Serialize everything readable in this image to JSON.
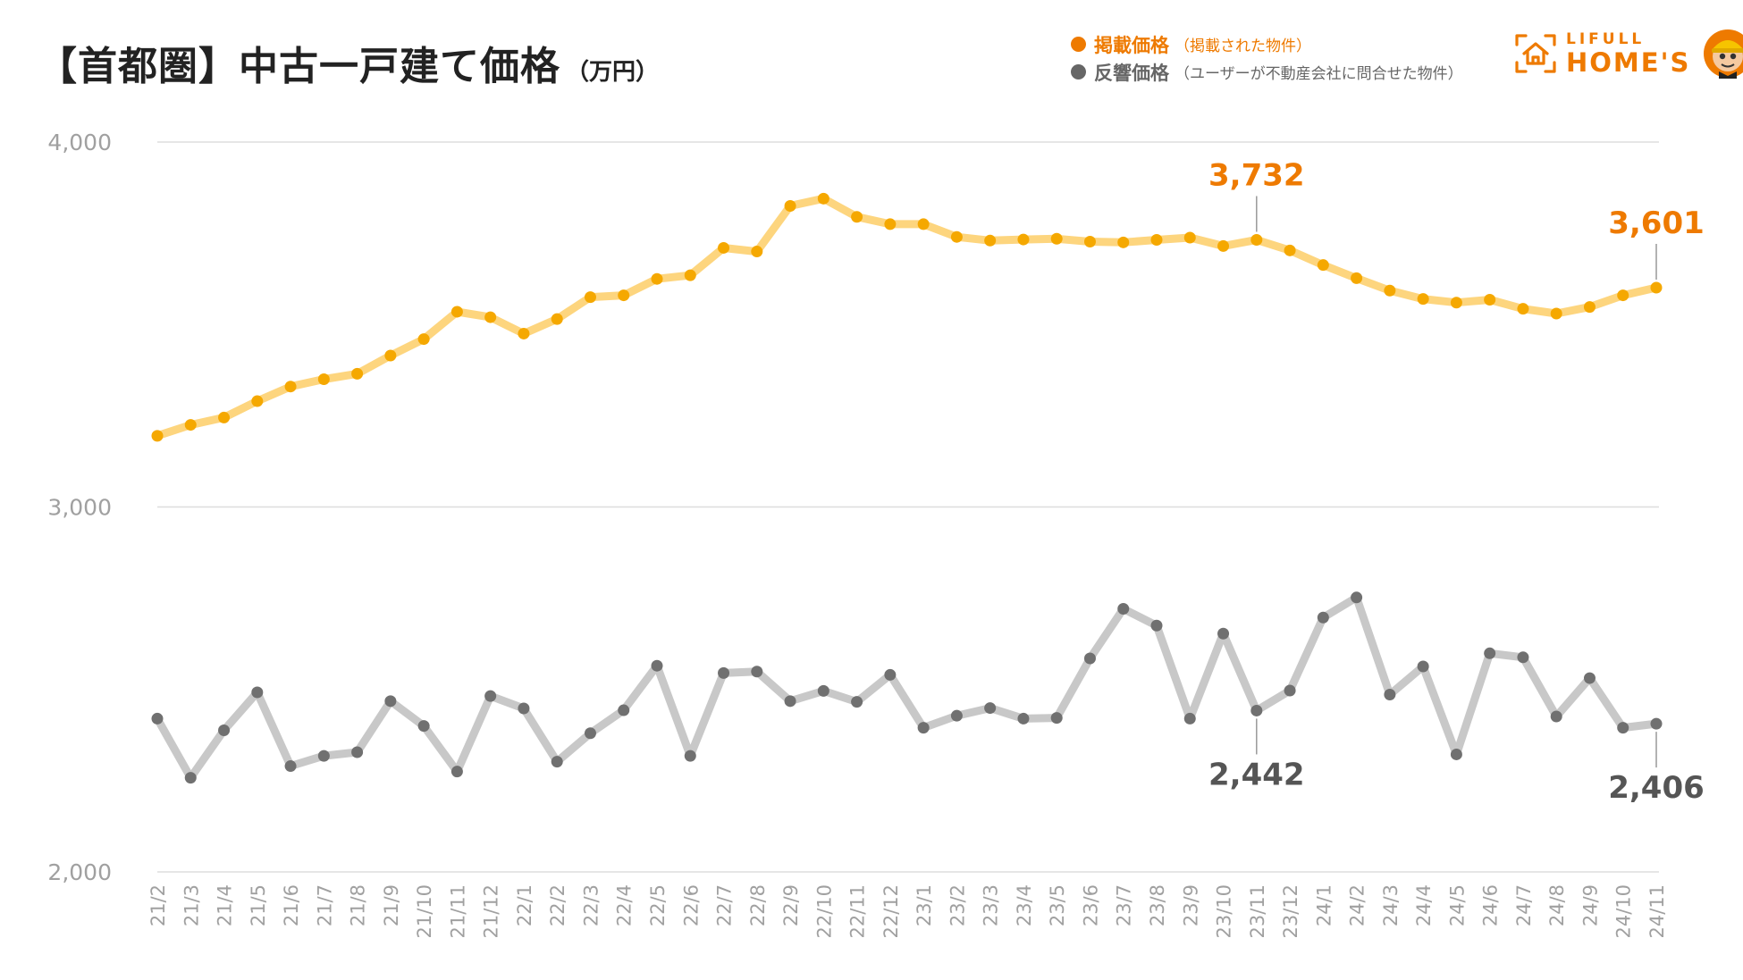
{
  "title": "【首都圏】中古一戸建て価格",
  "unit": "（万円）",
  "legend": [
    {
      "name": "掲載価格",
      "note": "（掲載された物件）",
      "color": "#ee7a00"
    },
    {
      "name": "反響価格",
      "note": "（ユーザーが不動産会社に問合せた物件）",
      "color": "#666666"
    }
  ],
  "logo": {
    "line1": "LIFULL",
    "line2": "HOME'S",
    "color": "#ee7a00"
  },
  "chart_data": {
    "type": "line",
    "categories": [
      "21/2",
      "21/3",
      "21/4",
      "21/5",
      "21/6",
      "21/7",
      "21/8",
      "21/9",
      "21/10",
      "21/11",
      "21/12",
      "22/1",
      "22/2",
      "22/3",
      "22/4",
      "22/5",
      "22/6",
      "22/7",
      "22/8",
      "22/9",
      "22/10",
      "22/11",
      "22/12",
      "23/1",
      "23/2",
      "23/3",
      "23/4",
      "23/5",
      "23/6",
      "23/7",
      "23/8",
      "23/9",
      "23/10",
      "23/11",
      "23/12",
      "24/1",
      "24/2",
      "24/3",
      "24/4",
      "24/5",
      "24/6",
      "24/7",
      "24/8",
      "24/9",
      "24/10",
      "24/11"
    ],
    "series": [
      {
        "name": "掲載価格",
        "line_color": "#fdd57e",
        "marker_color": "#f5a800",
        "values": [
          3195,
          3225,
          3245,
          3290,
          3330,
          3350,
          3365,
          3415,
          3460,
          3535,
          3520,
          3475,
          3515,
          3575,
          3580,
          3625,
          3635,
          3710,
          3700,
          3825,
          3845,
          3795,
          3775,
          3775,
          3740,
          3730,
          3733,
          3735,
          3727,
          3725,
          3732,
          3738,
          3715,
          3732,
          3703,
          3663,
          3627,
          3593,
          3570,
          3560,
          3568,
          3543,
          3530,
          3548,
          3580,
          3601
        ]
      },
      {
        "name": "反響価格",
        "line_color": "#c8c8c8",
        "marker_color": "#707070",
        "values": [
          2420,
          2258,
          2388,
          2492,
          2290,
          2318,
          2328,
          2468,
          2400,
          2275,
          2482,
          2448,
          2302,
          2380,
          2443,
          2565,
          2318,
          2545,
          2549,
          2468,
          2496,
          2466,
          2540,
          2395,
          2428,
          2449,
          2420,
          2422,
          2585,
          2721,
          2675,
          2420,
          2653,
          2442,
          2497,
          2697,
          2752,
          2486,
          2563,
          2322,
          2599,
          2588,
          2426,
          2531,
          2395,
          2406
        ]
      }
    ],
    "ylim": [
      2000,
      4000
    ],
    "yticks": [
      "4,000",
      "3,000",
      "2,000"
    ],
    "grid": true,
    "annotations": [
      {
        "series": 0,
        "index": 33,
        "label": "3,732",
        "position": "above"
      },
      {
        "series": 0,
        "index": 45,
        "label": "3,601",
        "position": "above"
      },
      {
        "series": 1,
        "index": 33,
        "label": "2,442",
        "position": "below"
      },
      {
        "series": 1,
        "index": 45,
        "label": "2,406",
        "position": "below"
      }
    ]
  }
}
